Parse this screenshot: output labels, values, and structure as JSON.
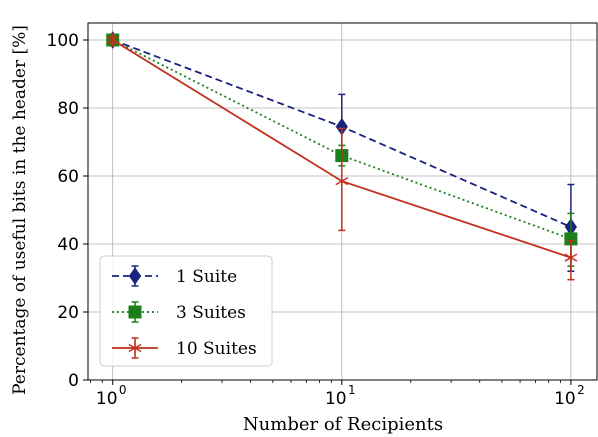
{
  "chart_data": {
    "type": "line",
    "xscale": "log",
    "xlim": [
      0.78,
      130
    ],
    "ylim": [
      0,
      105
    ],
    "x": [
      1,
      10,
      100
    ],
    "xticks": [
      {
        "value": 1,
        "base": "10",
        "exp": "0"
      },
      {
        "value": 10,
        "base": "10",
        "exp": "1"
      },
      {
        "value": 100,
        "base": "10",
        "exp": "2"
      }
    ],
    "yticks": [
      0,
      20,
      40,
      60,
      80,
      100
    ],
    "xlabel": "Number of Recipients",
    "ylabel": "Percentage of useful bits in the header [%]",
    "grid": true,
    "legend_position": "lower-left",
    "series": [
      {
        "name": "1 Suite",
        "color": "#1a237e",
        "linestyle": "dashed",
        "marker": "diamond",
        "y": [
          100,
          74.5,
          45
        ],
        "yerr_low": [
          1.5,
          10,
          13
        ],
        "yerr_high": [
          1.5,
          9.5,
          12.5
        ]
      },
      {
        "name": "3 Suites",
        "color": "#1b7f1b",
        "linestyle": "dotted",
        "marker": "square",
        "y": [
          100,
          66,
          41.5
        ],
        "yerr_low": [
          1,
          3,
          8
        ],
        "yerr_high": [
          1,
          3,
          7.5
        ]
      },
      {
        "name": "10 Suites",
        "color": "#c0301b",
        "linestyle": "solid",
        "marker": "x-star",
        "y": [
          100,
          58.5,
          36
        ],
        "yerr_low": [
          1,
          14.5,
          6.5
        ],
        "yerr_high": [
          1,
          15.5,
          5
        ]
      }
    ]
  }
}
